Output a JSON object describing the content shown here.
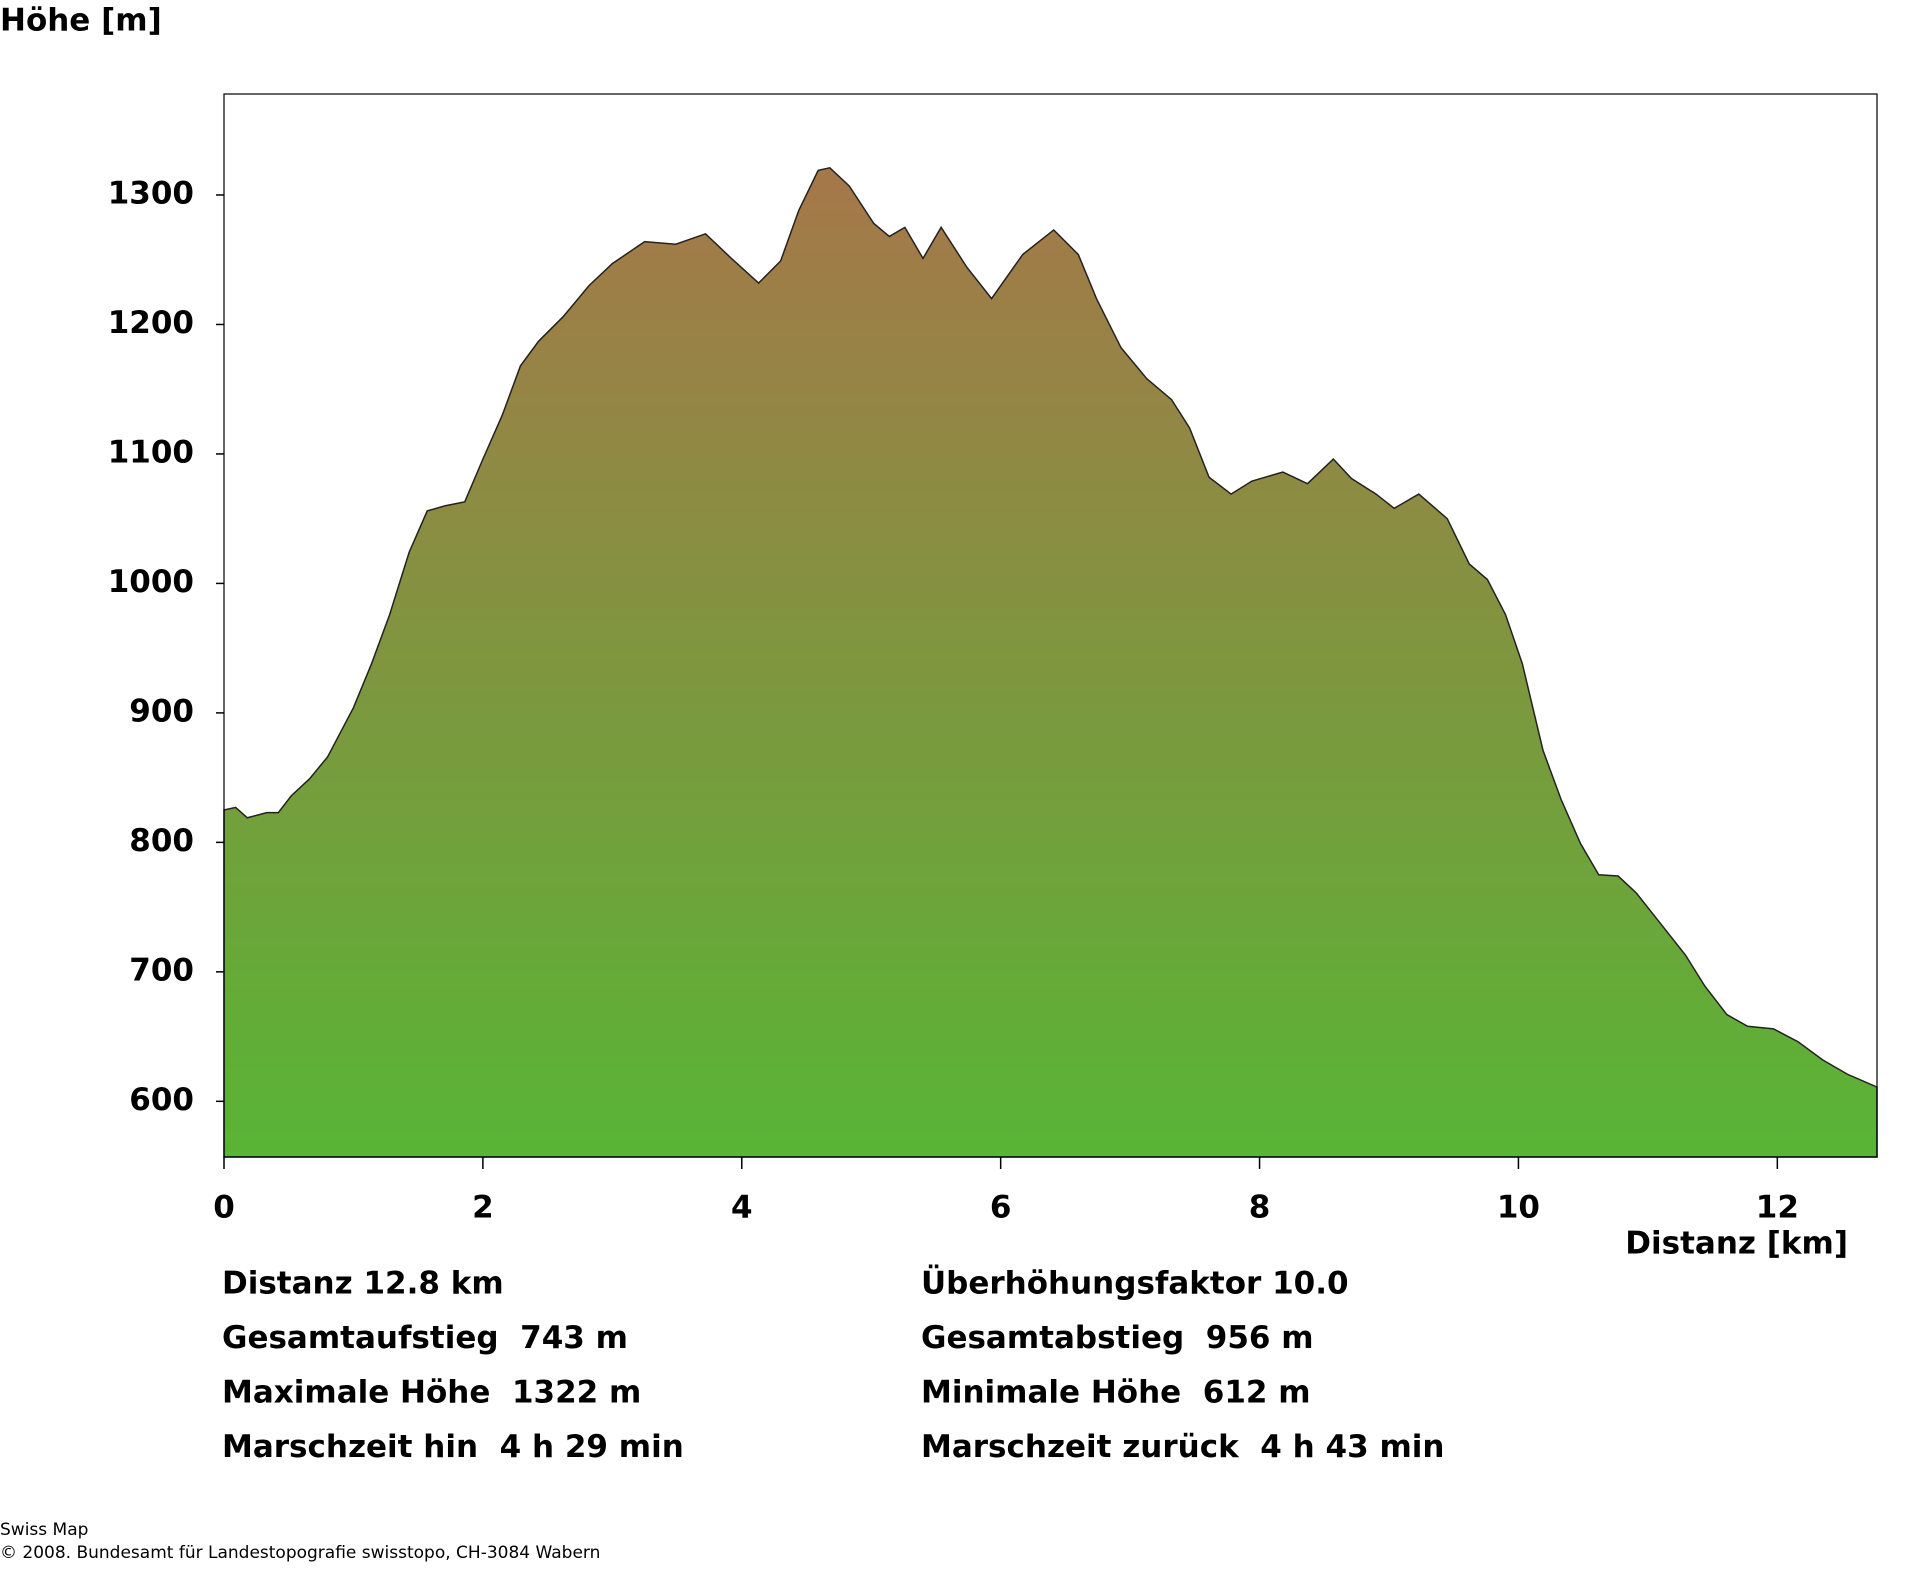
{
  "chart_data": {
    "type": "area",
    "ylabel": "Höhe [m]",
    "xlabel": "Distanz [km]",
    "x": [
      0,
      0.09,
      0.18,
      0.33,
      0.42,
      0.52,
      0.66,
      0.8,
      1.0,
      1.14,
      1.28,
      1.43,
      1.57,
      1.71,
      1.86,
      2.0,
      2.15,
      2.29,
      2.43,
      2.62,
      2.82,
      3.0,
      3.25,
      3.49,
      3.72,
      3.92,
      4.13,
      4.3,
      4.44,
      4.59,
      4.68,
      4.83,
      5.02,
      5.14,
      5.26,
      5.4,
      5.54,
      5.74,
      5.93,
      6.17,
      6.41,
      6.6,
      6.74,
      6.93,
      7.13,
      7.32,
      7.46,
      7.61,
      7.78,
      7.94,
      8.18,
      8.37,
      8.57,
      8.71,
      8.9,
      9.04,
      9.23,
      9.45,
      9.62,
      9.76,
      9.9,
      10.03,
      10.19,
      10.33,
      10.48,
      10.62,
      10.77,
      10.91,
      11.1,
      11.29,
      11.44,
      11.61,
      11.77,
      11.97,
      12.16,
      12.35,
      12.54,
      12.77
    ],
    "values": [
      825,
      827,
      819,
      823,
      823,
      836,
      849,
      866,
      904,
      938,
      976,
      1024,
      1056,
      1060,
      1063,
      1096,
      1130,
      1168,
      1187,
      1206,
      1230,
      1247,
      1264,
      1262,
      1270,
      1251,
      1232,
      1249,
      1288,
      1319,
      1321,
      1307,
      1278,
      1268,
      1275,
      1251,
      1275,
      1244,
      1220,
      1254,
      1273,
      1254,
      1220,
      1182,
      1158,
      1142,
      1120,
      1082,
      1069,
      1079,
      1086,
      1077,
      1096,
      1081,
      1069,
      1058,
      1069,
      1050,
      1015,
      1003,
      976,
      938,
      871,
      833,
      799,
      775,
      774,
      761,
      737,
      713,
      689,
      667,
      658,
      656,
      646,
      632,
      621,
      611
    ],
    "xlim": [
      0,
      12.77
    ],
    "xticks": [
      0,
      2,
      4,
      6,
      8,
      10,
      12
    ],
    "ylim": [
      557,
      1378
    ],
    "yticks": [
      600,
      700,
      800,
      900,
      1000,
      1100,
      1200,
      1300
    ],
    "color_top": "#a67749",
    "color_bottom": "#58b535"
  },
  "stats": [
    [
      "Distanz 12.8 km",
      "Überhöhungsfaktor 10.0"
    ],
    [
      "Gesamtaufstieg  743 m",
      "Gesamtabstieg  956 m"
    ],
    [
      "Maximale Höhe  1322 m",
      "Minimale Höhe  612 m"
    ],
    [
      "Marschzeit hin  4 h 29 min",
      "Marschzeit zurück  4 h 43 min"
    ]
  ],
  "source": [
    "Swiss Map",
    "© 2008. Bundesamt für Landestopografie swisstopo, CH-3084 Wabern"
  ]
}
